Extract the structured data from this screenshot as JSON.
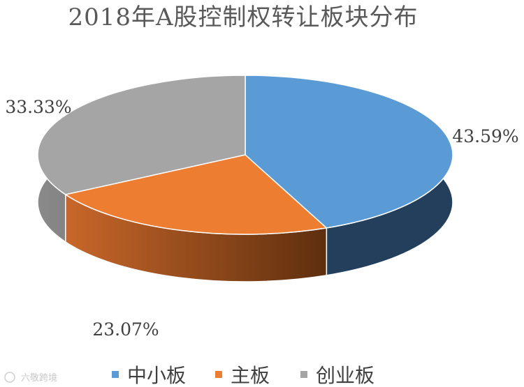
{
  "chart_data": {
    "type": "pie",
    "title": "2018年A股控制权转让板块分布",
    "slices": [
      {
        "label": "中小板",
        "value": 43.59,
        "value_label": "43.59%",
        "color": "#5b9bd5",
        "side_color": "#243f5c"
      },
      {
        "label": "主板",
        "value": 23.07,
        "value_label": "23.07%",
        "color": "#ed7d31",
        "side_color": "#a1541c"
      },
      {
        "label": "创业板",
        "value": 33.33,
        "value_label": "33.33%",
        "color": "#a5a5a5",
        "side_color": "#6e6e6e"
      }
    ],
    "legend_position": "bottom",
    "style": "3d"
  },
  "watermark": "六敬跨境"
}
